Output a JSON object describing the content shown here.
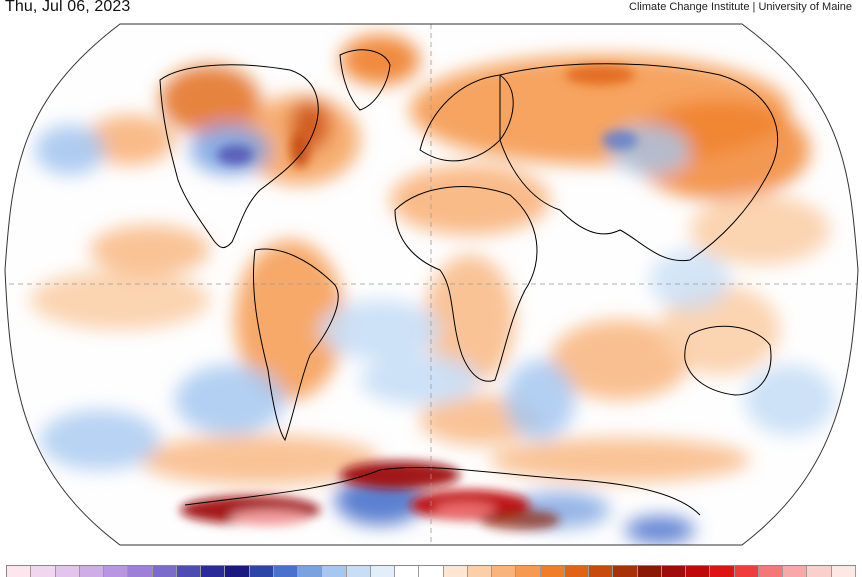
{
  "header": {
    "date": "Thu, Jul 06, 2023",
    "credit": "Climate Change Institute | University of Maine"
  },
  "map": {
    "projection": "winkel-tripel",
    "variable": "temperature-anomaly",
    "ocean_base_color": "#fefefe",
    "graticule_color": "#9a9a9a",
    "coastline_color": "#000000"
  },
  "color_scale": {
    "swatches": [
      "#fde6ee",
      "#f0d6ee",
      "#e2c4ec",
      "#cfaee8",
      "#b896e2",
      "#9f80d8",
      "#7a6cc8",
      "#4d4cb0",
      "#2a2a98",
      "#1a1a7e",
      "#2c46a8",
      "#4a72cc",
      "#7aa2e0",
      "#a6c8f0",
      "#c8def6",
      "#e2eefa",
      "#ffffff",
      "#ffffff",
      "#fde6d2",
      "#fbcfa8",
      "#f8b47c",
      "#f59a50",
      "#f07e28",
      "#e06414",
      "#c84a0c",
      "#a83208",
      "#8a1a06",
      "#a00c0c",
      "#c00a0a",
      "#dc1414",
      "#f03c3c",
      "#f47878",
      "#f8a8a8",
      "#fbd0cc",
      "#fde8e4"
    ]
  }
}
